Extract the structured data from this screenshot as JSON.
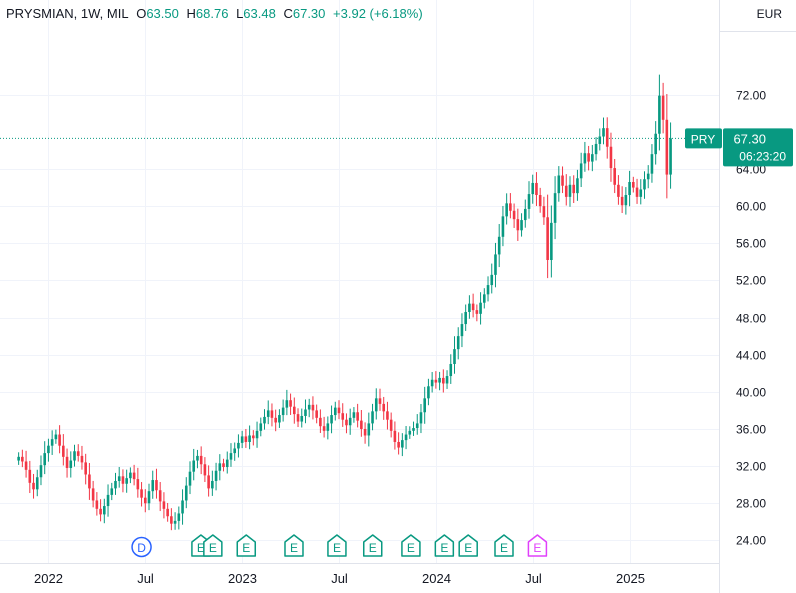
{
  "header": {
    "symbol_info": "PRYSMIAN, 1W, MIL",
    "open_label": "O",
    "open": "63.50",
    "high_label": "H",
    "high": "68.76",
    "low_label": "L",
    "low": "63.48",
    "close_label": "C",
    "close": "67.30",
    "change": "+3.92 (+6.18%)"
  },
  "currency": "EUR",
  "price_tag": {
    "symbol": "PRY",
    "price": "67.30",
    "countdown": "06:23:20"
  },
  "colors": {
    "up": "#089981",
    "down": "#f23645",
    "grid": "#f0f3fa",
    "axis_text": "#131722",
    "dividend": "#2962ff",
    "earnings": "#089981",
    "earnings_future": "#e040fb"
  },
  "chart_data": {
    "type": "candlestick",
    "y_ticks": [
      "24.00",
      "28.00",
      "32.00",
      "36.00",
      "40.00",
      "44.00",
      "48.00",
      "52.00",
      "56.00",
      "60.00",
      "64.00",
      "72.00"
    ],
    "ylim": [
      21.5,
      76.0
    ],
    "x_ticks": [
      "2022",
      "Jul",
      "2023",
      "Jul",
      "2024",
      "Jul",
      "2025"
    ],
    "x_tick_weeks": [
      8,
      34,
      60,
      86,
      112,
      138,
      164
    ],
    "xlim": [
      -5,
      188
    ],
    "grid": true,
    "last_close": 67.3,
    "weekly_close": [
      33.0,
      32.5,
      31.6,
      30.2,
      29.5,
      30.8,
      32.1,
      33.4,
      34.2,
      34.9,
      35.4,
      34.2,
      33.0,
      31.8,
      32.6,
      33.6,
      33.1,
      32.4,
      31.1,
      29.6,
      28.3,
      27.4,
      26.8,
      27.7,
      28.9,
      29.6,
      30.4,
      30.9,
      30.1,
      30.7,
      31.3,
      30.6,
      29.5,
      28.6,
      28.0,
      29.3,
      30.5,
      29.4,
      28.2,
      27.4,
      26.6,
      25.8,
      26.1,
      26.9,
      28.3,
      29.9,
      31.4,
      32.6,
      33.1,
      32.2,
      31.0,
      29.6,
      30.4,
      31.5,
      32.3,
      31.9,
      32.7,
      33.4,
      33.9,
      34.5,
      35.2,
      34.6,
      35.3,
      35.0,
      35.8,
      36.6,
      37.3,
      38.0,
      37.2,
      36.7,
      37.5,
      38.3,
      39.1,
      38.4,
      37.6,
      36.8,
      37.4,
      38.1,
      38.6,
      38.0,
      37.2,
      36.3,
      35.8,
      36.6,
      37.5,
      38.3,
      37.7,
      37.0,
      36.4,
      37.2,
      37.8,
      36.9,
      36.0,
      35.3,
      36.6,
      37.9,
      39.3,
      38.7,
      37.9,
      37.0,
      35.8,
      34.6,
      34.0,
      34.8,
      35.4,
      35.8,
      36.1,
      36.6,
      37.8,
      39.3,
      40.6,
      41.3,
      41.0,
      41.5,
      40.9,
      41.7,
      43.0,
      44.6,
      46.0,
      47.3,
      48.6,
      49.5,
      48.8,
      48.4,
      49.6,
      50.5,
      51.5,
      52.6,
      54.8,
      56.7,
      58.9,
      60.3,
      59.5,
      58.6,
      57.4,
      58.5,
      59.7,
      61.3,
      62.5,
      61.2,
      60.0,
      58.8,
      54.2,
      58.2,
      61.4,
      63.3,
      62.2,
      61.0,
      62.3,
      61.4,
      63.0,
      64.6,
      65.7,
      64.8,
      65.6,
      66.7,
      67.5,
      68.4,
      66.4,
      64.1,
      62.3,
      61.0,
      60.1,
      61.2,
      62.6,
      62.0,
      61.0,
      61.8,
      62.9,
      63.5,
      65.6,
      67.8,
      71.9,
      69.3,
      63.4,
      67.3
    ],
    "events": [
      {
        "type": "dividend",
        "label": "D",
        "week": 33
      },
      {
        "type": "earnings",
        "label": "E",
        "week": 80
      },
      {
        "type": "earnings",
        "label": "E",
        "week": 85
      },
      {
        "type": "earnings",
        "label": "E",
        "week": 99
      },
      {
        "type": "earnings",
        "label": "E",
        "week": 119
      },
      {
        "type": "earnings",
        "label": "E",
        "week": 137
      },
      {
        "type": "earnings",
        "label": "E",
        "week": 152
      },
      {
        "type": "earnings",
        "label": "E",
        "week": 168
      },
      {
        "type": "earnings",
        "label": "E",
        "week": 182
      },
      {
        "type": "earnings",
        "label": "E",
        "week": 192
      },
      {
        "type": "earnings",
        "label": "E",
        "week": 207
      },
      {
        "type": "earnings_future",
        "label": "E",
        "week": 221
      }
    ]
  }
}
